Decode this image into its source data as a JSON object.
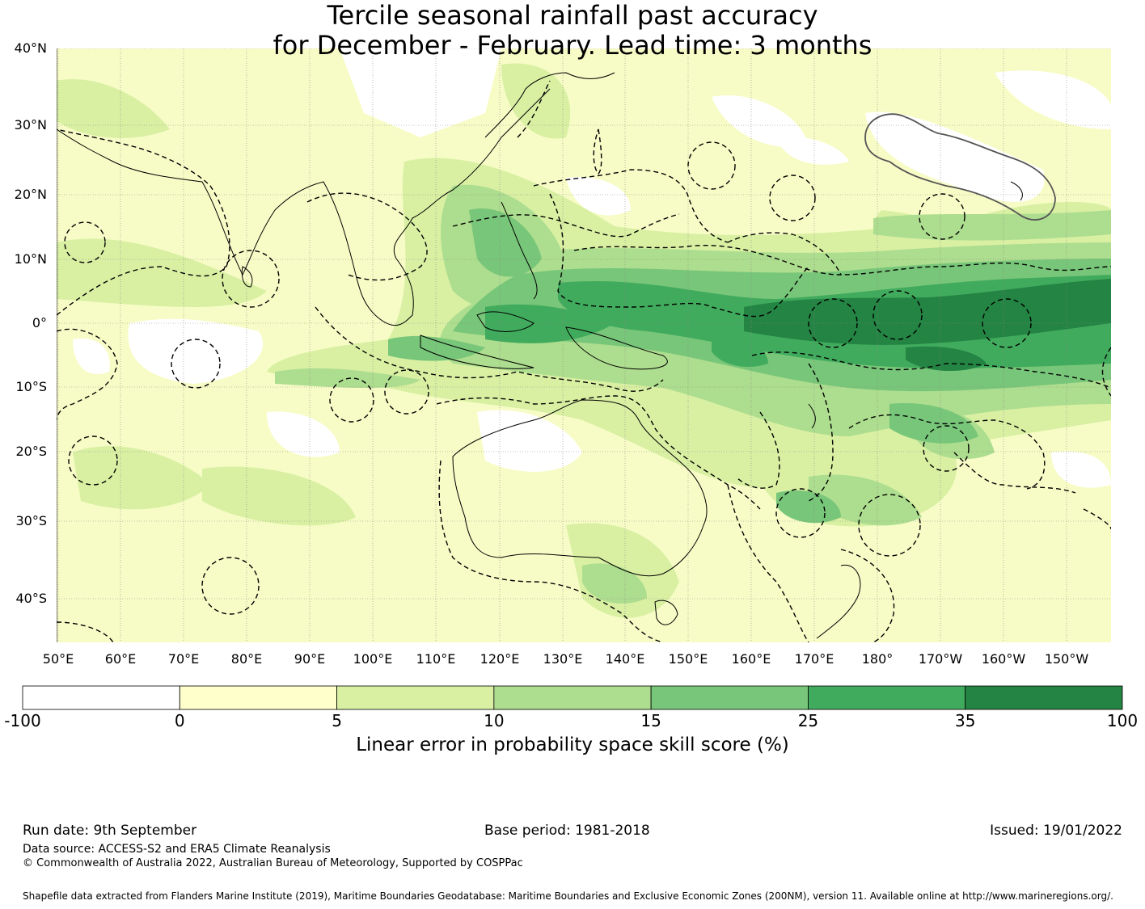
{
  "title_line1": "Tercile seasonal rainfall past accuracy",
  "title_line2": "for December - February. Lead time: 3 months",
  "lat_labels": [
    "40°N",
    "30°N",
    "20°N",
    "10°N",
    "0°",
    "10°S",
    "20°S",
    "30°S",
    "40°S"
  ],
  "lon_labels": [
    "50°E",
    "60°E",
    "70°E",
    "80°E",
    "90°E",
    "100°E",
    "110°E",
    "120°E",
    "130°E",
    "140°E",
    "150°E",
    "160°E",
    "170°E",
    "180°",
    "170°W",
    "160°W",
    "150°W"
  ],
  "colorbar": {
    "label": "Linear error in probability space skill score (%)",
    "ticks": [
      "-100",
      "0",
      "5",
      "10",
      "15",
      "25",
      "35",
      "100"
    ],
    "colors": [
      "#ffffff",
      "#ffffcc",
      "#d9f0a3",
      "#addd8e",
      "#78c679",
      "#41ab5d",
      "#238443"
    ]
  },
  "footer": {
    "run_date": "Run date: 9th September",
    "base_period": "Base period: 1981-2018",
    "issued": "Issued: 19/01/2022",
    "data_source": "Data source: ACCESS-S2 and ERA5 Climate Reanalysis",
    "copyright": "© Commonwealth of Australia 2022, Australian Bureau of Meteorology, Supported by COSPPac",
    "shapefile": "Shapefile data extracted from Flanders Marine Institute (2019), Maritime Boundaries Geodatabase: Maritime Boundaries and Exclusive Economic Zones (200NM), version 11. Available online at http://www.marineregions.org/."
  }
}
